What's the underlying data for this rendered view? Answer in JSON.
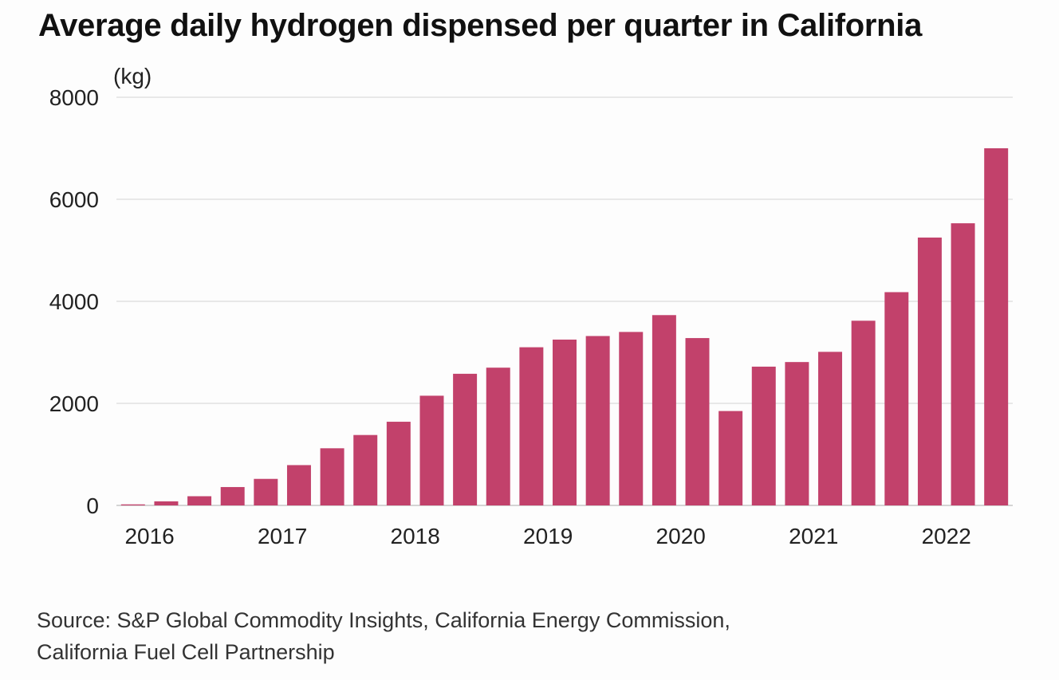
{
  "chart_data": {
    "type": "bar",
    "title": "Average daily hydrogen dispensed per quarter in California",
    "unit_label": "(kg)",
    "ylim": [
      0,
      8000
    ],
    "y_ticks": [
      0,
      2000,
      4000,
      6000,
      8000
    ],
    "x_tick_labels": [
      {
        "label": "2016",
        "category_index": 1
      },
      {
        "label": "2017",
        "category_index": 5
      },
      {
        "label": "2018",
        "category_index": 9
      },
      {
        "label": "2019",
        "category_index": 13
      },
      {
        "label": "2020",
        "category_index": 17
      },
      {
        "label": "2021",
        "category_index": 21
      },
      {
        "label": "2022",
        "category_index": 25
      }
    ],
    "grid": true,
    "bar_color": "#c2416b",
    "values": [
      20,
      80,
      180,
      360,
      520,
      790,
      1120,
      1380,
      1640,
      2150,
      2580,
      2700,
      3100,
      3250,
      3320,
      3400,
      3730,
      3280,
      1850,
      2720,
      2810,
      3010,
      3620,
      4180,
      5250,
      5530,
      7000
    ]
  },
  "source": {
    "line1": "Source: S&P Global Commodity Insights, California Energy Commission,",
    "line2": "California Fuel Cell Partnership"
  }
}
